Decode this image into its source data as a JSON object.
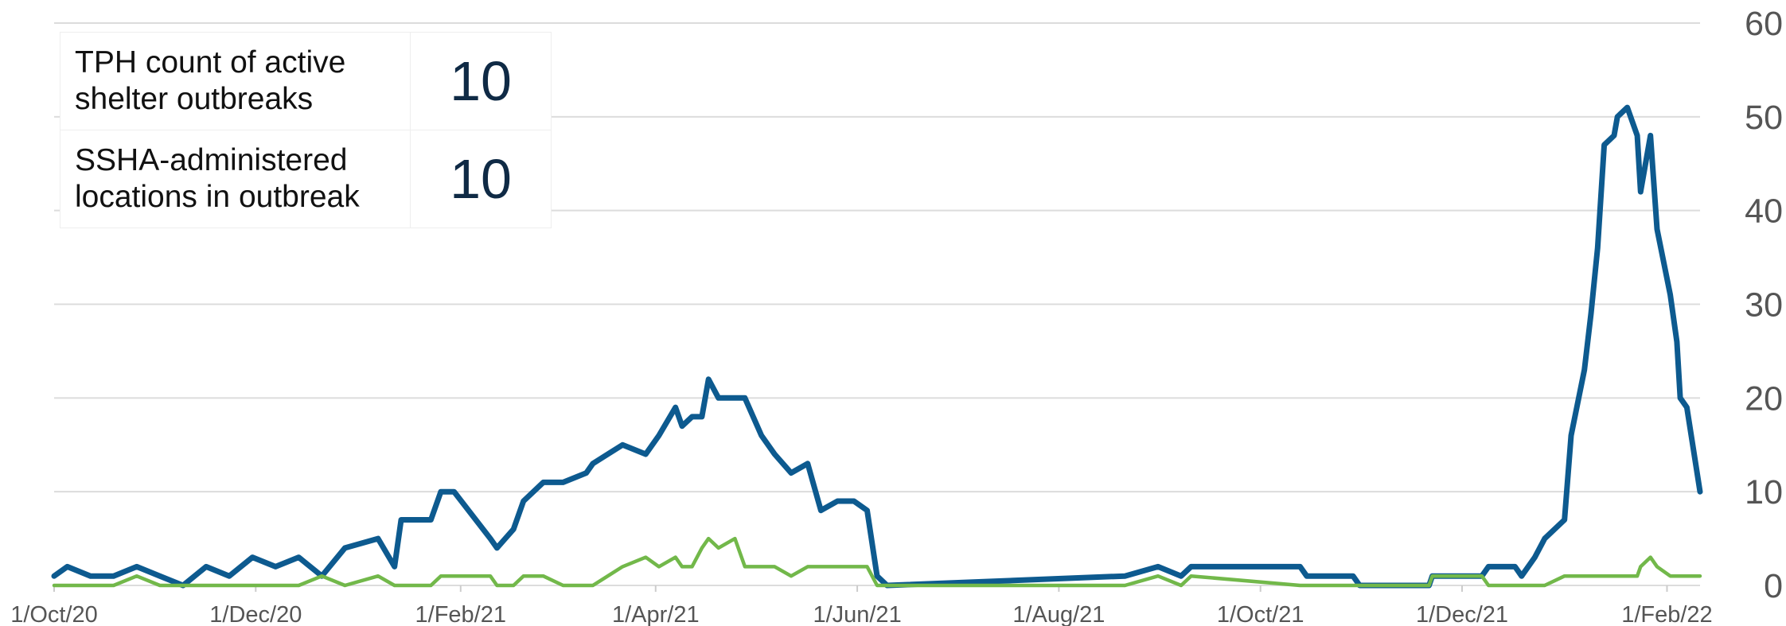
{
  "chart_data": {
    "type": "line",
    "x": [
      "2020-10-01",
      "2020-10-05",
      "2020-10-12",
      "2020-10-19",
      "2020-10-26",
      "2020-11-02",
      "2020-11-09",
      "2020-11-16",
      "2020-11-23",
      "2020-11-30",
      "2020-12-07",
      "2020-12-14",
      "2020-12-21",
      "2020-12-28",
      "2021-01-07",
      "2021-01-12",
      "2021-01-14",
      "2021-01-23",
      "2021-01-26",
      "2021-01-30",
      "2021-02-10",
      "2021-02-12",
      "2021-02-17",
      "2021-02-20",
      "2021-02-26",
      "2021-03-04",
      "2021-03-11",
      "2021-03-13",
      "2021-03-22",
      "2021-03-29",
      "2021-04-02",
      "2021-04-07",
      "2021-04-09",
      "2021-04-12",
      "2021-04-15",
      "2021-04-17",
      "2021-04-20",
      "2021-04-25",
      "2021-04-28",
      "2021-05-03",
      "2021-05-07",
      "2021-05-12",
      "2021-05-17",
      "2021-05-21",
      "2021-05-26",
      "2021-05-31",
      "2021-06-04",
      "2021-06-07",
      "2021-06-10",
      "2021-08-21",
      "2021-08-31",
      "2021-09-07",
      "2021-09-10",
      "2021-10-13",
      "2021-10-15",
      "2021-10-29",
      "2021-10-31",
      "2021-11-21",
      "2021-11-22",
      "2021-12-07",
      "2021-12-09",
      "2021-12-17",
      "2021-12-19",
      "2021-12-23",
      "2021-12-26",
      "2022-01-01",
      "2022-01-03",
      "2022-01-07",
      "2022-01-09",
      "2022-01-11",
      "2022-01-13",
      "2022-01-16",
      "2022-01-17",
      "2022-01-20",
      "2022-01-23",
      "2022-01-24",
      "2022-01-27",
      "2022-01-29",
      "2022-02-02",
      "2022-02-04",
      "2022-02-05",
      "2022-02-07",
      "2022-02-11"
    ],
    "series": [
      {
        "color": "#0d5a8f",
        "values": [
          1,
          2,
          1,
          1,
          2,
          1,
          0,
          2,
          1,
          3,
          2,
          3,
          1,
          4,
          5,
          2,
          7,
          7,
          10,
          10,
          5,
          4,
          6,
          9,
          11,
          11,
          12,
          13,
          15,
          14,
          16,
          19,
          17,
          18,
          18,
          22,
          20,
          20,
          20,
          16,
          14,
          12,
          13,
          8,
          9,
          9,
          8,
          1,
          0,
          1,
          2,
          1,
          2,
          2,
          1,
          1,
          0,
          0,
          1,
          1,
          2,
          2,
          1,
          3,
          5,
          7,
          16,
          23,
          29,
          36,
          47,
          48,
          50,
          51,
          48,
          42,
          48,
          38,
          31,
          26,
          20,
          19,
          10
        ]
      },
      {
        "color": "#72b84a",
        "values": [
          0,
          0,
          0,
          0,
          1,
          0,
          0,
          0,
          0,
          0,
          0,
          0,
          1,
          0,
          1,
          0,
          0,
          0,
          1,
          1,
          1,
          0,
          0,
          1,
          1,
          0,
          0,
          0,
          2,
          3,
          2,
          3,
          2,
          2,
          4,
          5,
          4,
          5,
          2,
          2,
          2,
          1,
          2,
          2,
          2,
          2,
          2,
          0,
          0,
          0,
          1,
          0,
          1,
          0,
          0,
          0,
          0,
          0,
          1,
          1,
          0,
          0,
          0,
          0,
          0,
          1,
          1,
          1,
          1,
          1,
          1,
          1,
          1,
          1,
          1,
          2,
          3,
          2,
          1,
          1,
          1,
          1,
          1
        ]
      }
    ],
    "xlim": [
      "2020-10-01",
      "2022-02-11"
    ],
    "xticks": [
      {
        "value": "2020-10-01",
        "label": "1/Oct/20"
      },
      {
        "value": "2020-12-01",
        "label": "1/Dec/20"
      },
      {
        "value": "2021-02-01",
        "label": "1/Feb/21"
      },
      {
        "value": "2021-04-01",
        "label": "1/Apr/21"
      },
      {
        "value": "2021-06-01",
        "label": "1/Jun/21"
      },
      {
        "value": "2021-08-01",
        "label": "1/Aug/21"
      },
      {
        "value": "2021-10-01",
        "label": "1/Oct/21"
      },
      {
        "value": "2021-12-01",
        "label": "1/Dec/21"
      },
      {
        "value": "2022-02-01",
        "label": "1/Feb/22"
      }
    ],
    "ylim": [
      0,
      60
    ],
    "yticks": [
      0,
      10,
      20,
      30,
      40,
      50,
      60
    ],
    "grid": true
  },
  "summary": [
    {
      "label": "TPH count of active shelter outbreaks",
      "value": 10
    },
    {
      "label": "SSHA-administered locations in outbreak",
      "value": 10
    }
  ]
}
